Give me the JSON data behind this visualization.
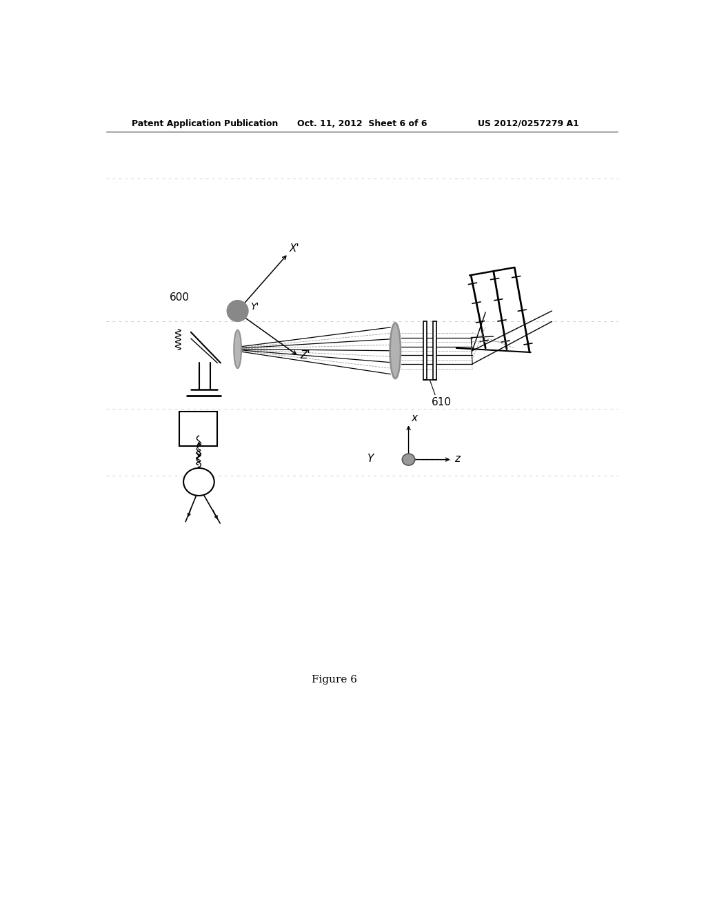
{
  "bg_color": "#ffffff",
  "header_left": "Patent Application Publication",
  "header_center": "Oct. 11, 2012  Sheet 6 of 6",
  "header_right": "US 2012/0257279 A1",
  "figure_label": "Figure 6",
  "label_600": "600",
  "label_610": "610",
  "lc": "#000000",
  "gc": "#888888",
  "lgc": "#aaaaaa",
  "ray_solid": "#555555",
  "ray_dash": "#999999"
}
